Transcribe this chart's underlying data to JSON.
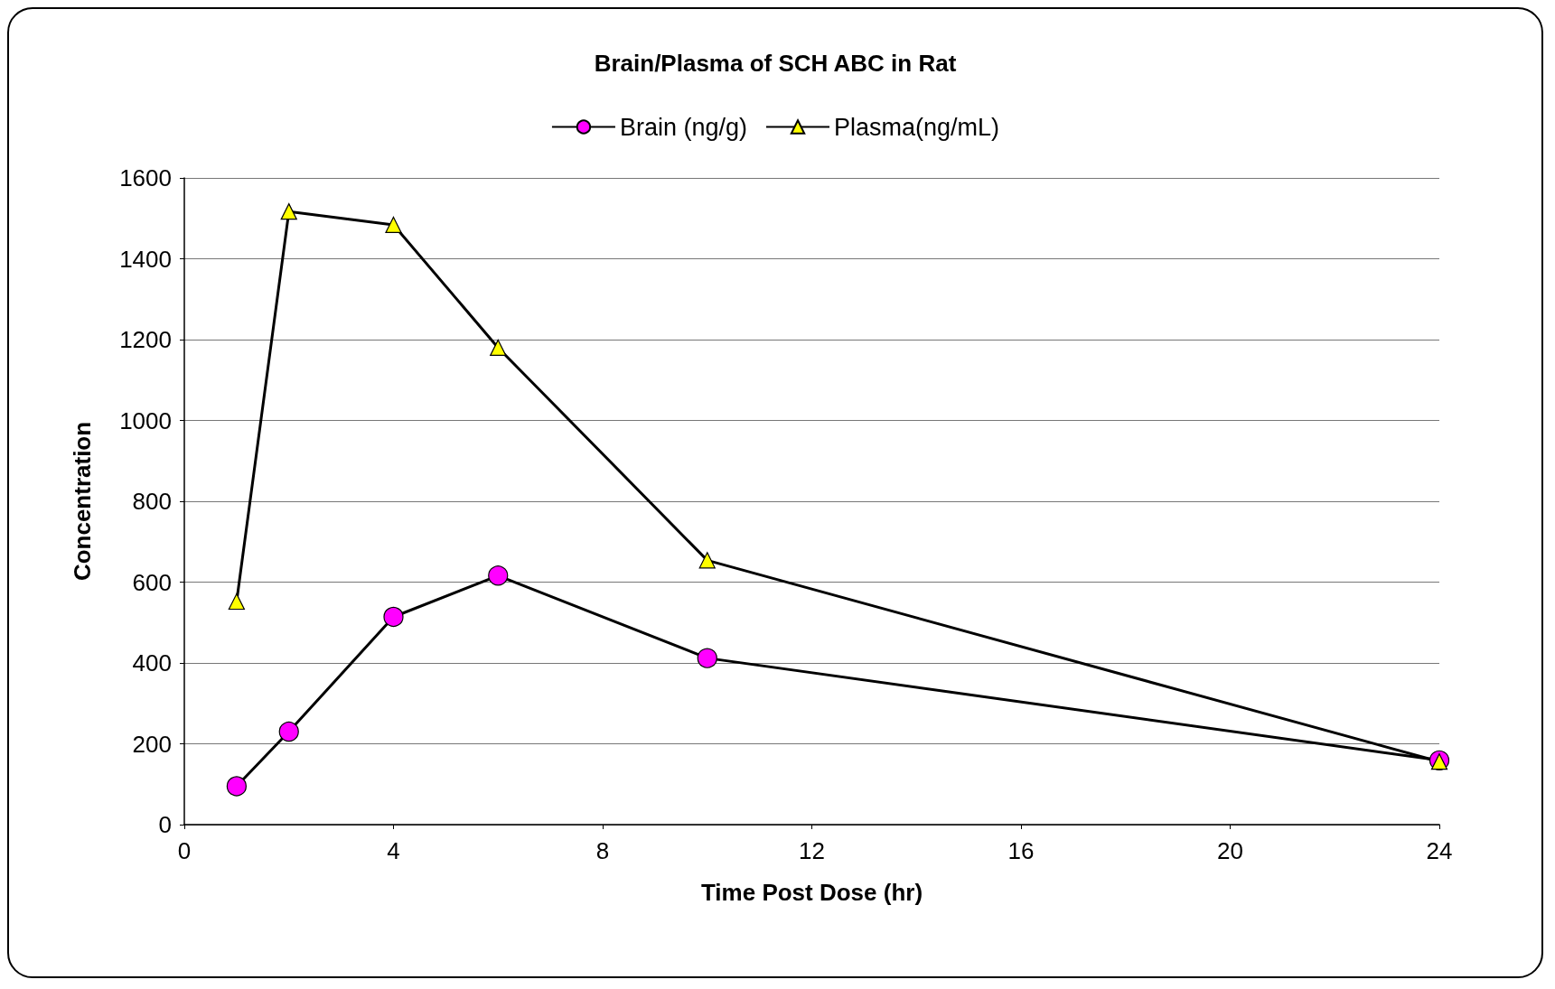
{
  "chart_data": {
    "type": "line",
    "title": "Brain/Plasma of SCH ABC in Rat",
    "xlabel": "Time Post Dose (hr)",
    "ylabel": "Concentration",
    "x": [
      1,
      2,
      4,
      6,
      10,
      24
    ],
    "series": [
      {
        "name": "Brain (ng/g)",
        "color": "#ff00ff",
        "marker": "circle",
        "values": [
          95,
          230,
          514,
          616,
          412,
          159
        ]
      },
      {
        "name": "Plasma(ng/mL)",
        "color": "#ffff00",
        "marker": "triangle",
        "values": [
          552,
          1517,
          1484,
          1180,
          654,
          156
        ]
      }
    ],
    "xlim": [
      0,
      24
    ],
    "xticks": [
      0,
      4,
      8,
      12,
      16,
      20,
      24
    ],
    "ylim": [
      0,
      1600
    ],
    "yticks": [
      0,
      200,
      400,
      600,
      800,
      1000,
      1200,
      1400,
      1600
    ],
    "grid": "y",
    "legend": "top",
    "line_style": "solid"
  }
}
